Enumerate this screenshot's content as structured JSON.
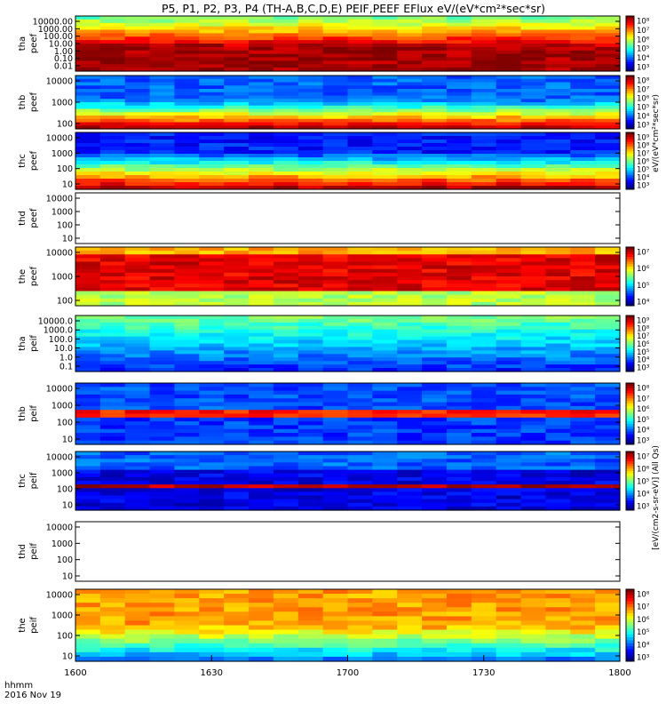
{
  "title": "P5, P1, P2, P3, P4 (TH-A,B,C,D,E) PEIF,PEEF EFlux eV/(eV*cm²*sec*sr)",
  "chart_data": {
    "type": "heatmap",
    "date": "2016 Nov 19",
    "time_label": "hhmm",
    "x_ticks": [
      "1600",
      "1630",
      "1700",
      "1730",
      "1800"
    ],
    "x_range": [
      "1600",
      "1800"
    ],
    "colorbar_title_electron": "eV/(eV*cm²*sec*sr)",
    "colorbar_title_ion": "[eV/(cm2-s-sr-eV)] (All Qs)",
    "panels": [
      {
        "id": "tha-peef",
        "label": [
          "tha",
          "peef"
        ],
        "y_ticks": [
          "10000.00",
          "1000.00",
          "100.00",
          "10.00",
          "1.00",
          "0.10",
          "0.01"
        ],
        "cbar_ticks": [
          "10⁸",
          "10⁷",
          "10⁶",
          "10⁵",
          "10⁴",
          "10³"
        ],
        "has_data": true
      },
      {
        "id": "thb-peef",
        "label": [
          "thb",
          "peef"
        ],
        "y_ticks": [
          "10000",
          "1000",
          "100"
        ],
        "cbar_ticks": [
          "10⁸",
          "10⁷",
          "10⁶",
          "10⁵",
          "10⁴",
          "10³"
        ],
        "has_data": true
      },
      {
        "id": "thc-peef",
        "label": [
          "thc",
          "peef"
        ],
        "y_ticks": [
          "10000",
          "1000",
          "100",
          "10"
        ],
        "cbar_ticks": [
          "10⁹",
          "10⁸",
          "10⁷",
          "10⁶",
          "10⁵",
          "10⁴",
          "10³"
        ],
        "has_data": true
      },
      {
        "id": "thd-peef",
        "label": [
          "thd",
          "peef"
        ],
        "y_ticks": [
          "10000",
          "1000",
          "100",
          "10"
        ],
        "cbar_ticks": [],
        "has_data": false
      },
      {
        "id": "the-peef",
        "label": [
          "the",
          "peef"
        ],
        "y_ticks": [
          "10000",
          "1000",
          "100"
        ],
        "cbar_ticks": [
          "10⁷",
          "10⁶",
          "10⁵",
          "10⁴"
        ],
        "has_data": true
      },
      {
        "id": "tha-peif",
        "label": [
          "tha",
          "peif"
        ],
        "y_ticks": [
          "10000.0",
          "1000.0",
          "100.0",
          "10.0",
          "1.0",
          "0.1"
        ],
        "cbar_ticks": [
          "10⁹",
          "10⁸",
          "10⁷",
          "10⁶",
          "10⁵",
          "10⁴",
          "10³"
        ],
        "has_data": true
      },
      {
        "id": "thb-peif",
        "label": [
          "thb",
          "peif"
        ],
        "y_ticks": [
          "10000",
          "1000",
          "100",
          "10"
        ],
        "cbar_ticks": [
          "10⁸",
          "10⁷",
          "10⁶",
          "10⁵",
          "10⁴",
          "10³"
        ],
        "has_data": true
      },
      {
        "id": "thc-peif",
        "label": [
          "thc",
          "peif"
        ],
        "y_ticks": [
          "10000",
          "1000",
          "100",
          "10"
        ],
        "cbar_ticks": [
          "10⁷",
          "10⁶",
          "10⁵",
          "10⁴",
          "10³"
        ],
        "has_data": true
      },
      {
        "id": "thd-peif",
        "label": [
          "thd",
          "peif"
        ],
        "y_ticks": [
          "10000",
          "1000",
          "100",
          "10"
        ],
        "cbar_ticks": [],
        "has_data": false
      },
      {
        "id": "the-peif",
        "label": [
          "the",
          "peif"
        ],
        "y_ticks": [
          "10000",
          "1000",
          "100",
          "10"
        ],
        "cbar_ticks": [
          "10⁸",
          "10⁷",
          "10⁶",
          "10⁵",
          "10⁴",
          "10³"
        ],
        "has_data": true
      }
    ],
    "colors": {
      "band_red": "#ff0000",
      "band_yellow": "#ffff00",
      "low": "#1010c0",
      "high": "#ff1000"
    }
  }
}
